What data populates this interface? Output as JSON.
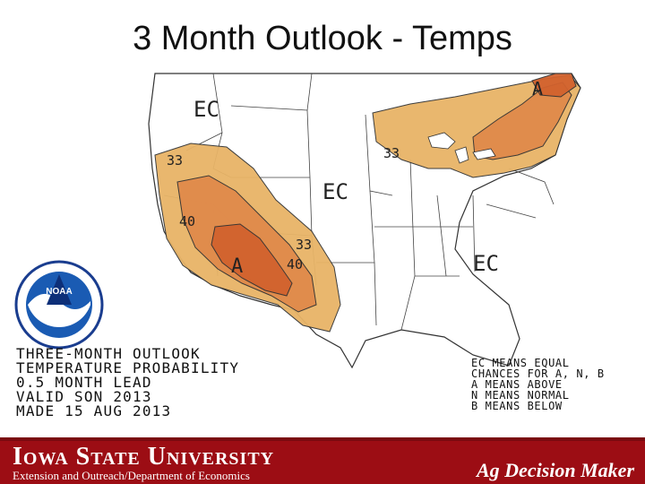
{
  "slide": {
    "title": "3 Month Outlook - Temps"
  },
  "map": {
    "region_labels": {
      "ec_northwest": "EC",
      "ec_central": "EC",
      "ec_southeast": "EC",
      "a_southwest": "A",
      "a_northeast": "A"
    },
    "contour_labels": {
      "c33_west": "33",
      "c40_west": "40",
      "c33_south": "33",
      "c40_south": "40",
      "c33_northeast": "33"
    },
    "colors": {
      "prob_33_40": "#e8b467",
      "prob_40_50": "#e08a4b",
      "prob_50_60": "#d2622e",
      "boundary": "#333333"
    },
    "outlook_text": [
      "THREE-MONTH OUTLOOK",
      "TEMPERATURE PROBABILITY",
      "0.5 MONTH LEAD",
      "VALID SON 2013",
      "MADE 15 AUG 2013"
    ],
    "legend_text": [
      "EC MEANS EQUAL",
      "CHANCES FOR A, N, B",
      "A MEANS ABOVE",
      "N MEANS NORMAL",
      "B MEANS BELOW"
    ],
    "noaa_logo_text": "NOAA"
  },
  "footer": {
    "university": "Iowa State University",
    "department": "Extension and Outreach/Department of Economics",
    "brand": "Ag Decision Maker"
  }
}
